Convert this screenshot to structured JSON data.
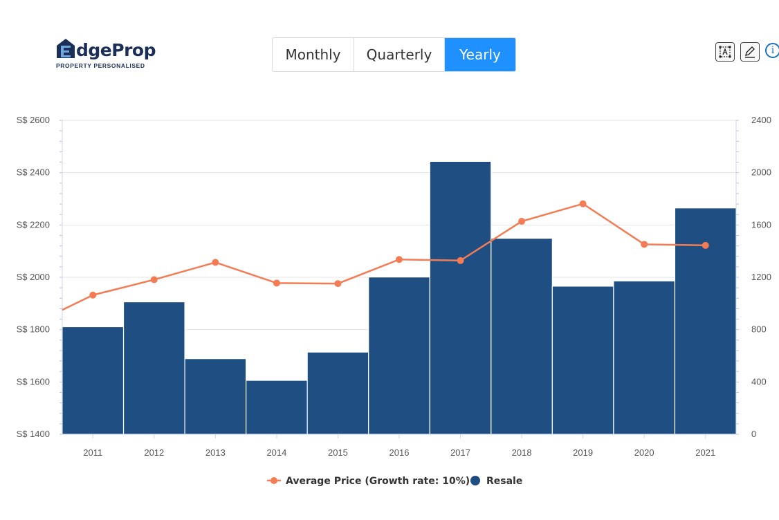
{
  "logo": {
    "wordmark": "EdgeProp",
    "tagline": "PROPERTY PERSONALISED"
  },
  "period_selector": {
    "options": [
      "Monthly",
      "Quarterly",
      "Yearly"
    ],
    "selected": "Yearly"
  },
  "toolbar": {
    "icons": [
      "text-select-icon",
      "pen-edit-icon",
      "info-icon"
    ]
  },
  "colors": {
    "bar": "#1f4e82",
    "line": "#f47c55",
    "active_tab": "#1e90ff",
    "brand": "#1a2e57"
  },
  "chart_data": {
    "type": "bar",
    "categories": [
      "2011",
      "2012",
      "2013",
      "2014",
      "2015",
      "2016",
      "2017",
      "2018",
      "2019",
      "2020",
      "2021"
    ],
    "series": [
      {
        "name": "Resale",
        "type": "bar",
        "axis": "right",
        "values": [
          822,
          1012,
          578,
          412,
          628,
          1202,
          2086,
          1498,
          1132,
          1172,
          1730
        ]
      },
      {
        "name": "Average Price (Growth rate: 10%)",
        "type": "line",
        "axis": "left",
        "values": [
          1932,
          1991,
          2057,
          1978,
          1976,
          2068,
          2064,
          2214,
          2281,
          2126,
          2122
        ]
      }
    ],
    "line_start_value": 1875,
    "left_axis": {
      "ylim": [
        1400,
        2600
      ],
      "ticks": [
        1400,
        1600,
        1800,
        2000,
        2200,
        2400,
        2600
      ],
      "prefix": "S$ "
    },
    "right_axis": {
      "ylim": [
        0,
        2400
      ],
      "ticks": [
        0,
        400,
        800,
        1200,
        1600,
        2000,
        2400
      ]
    },
    "grid": true,
    "legend": "bottom-center"
  }
}
